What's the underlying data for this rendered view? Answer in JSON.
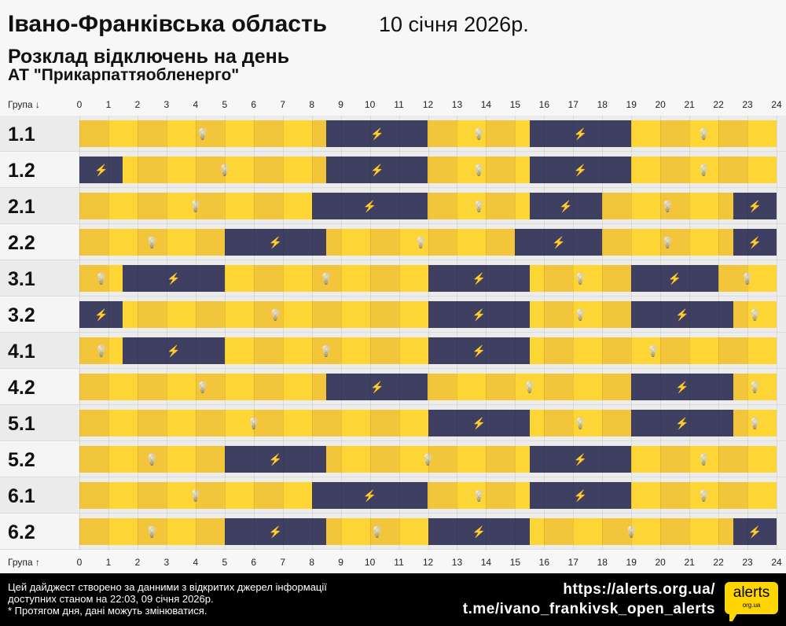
{
  "header": {
    "region": "Івано-Франківська область",
    "date": "10 січня 2026р.",
    "subtitle": "Розклад відключень на день",
    "company": "АТ \"Прикарпаттяобленерго\""
  },
  "chart_data": {
    "type": "timeline",
    "x_label_top": "Група ↓",
    "x_label_bottom": "Група ↑",
    "x_ticks": [
      "0",
      "1",
      "2",
      "3",
      "4",
      "5",
      "6",
      "7",
      "8",
      "9",
      "10",
      "11",
      "12",
      "13",
      "14",
      "15",
      "16",
      "17",
      "18",
      "19",
      "20",
      "21",
      "22",
      "23",
      "24"
    ],
    "xlim": [
      0,
      24
    ],
    "colors": {
      "power_on": "#fdd535",
      "power_on_alt": "#f3c53a",
      "power_off": "#3f3f62"
    },
    "icons": {
      "power_on": "lightbulb-icon",
      "power_off": "no-power-icon"
    },
    "groups": [
      {
        "name": "1.1",
        "off": [
          [
            8.5,
            12
          ],
          [
            15.5,
            19
          ]
        ]
      },
      {
        "name": "1.2",
        "off": [
          [
            0,
            1.5
          ],
          [
            8.5,
            12
          ],
          [
            15.5,
            19
          ]
        ]
      },
      {
        "name": "2.1",
        "off": [
          [
            8,
            12
          ],
          [
            15.5,
            18
          ],
          [
            22.5,
            24
          ]
        ]
      },
      {
        "name": "2.2",
        "off": [
          [
            5,
            8.5
          ],
          [
            15,
            18
          ],
          [
            22.5,
            24
          ]
        ]
      },
      {
        "name": "3.1",
        "off": [
          [
            1.5,
            5
          ],
          [
            12,
            15.5
          ],
          [
            19,
            22
          ]
        ]
      },
      {
        "name": "3.2",
        "off": [
          [
            0,
            1.5
          ],
          [
            12,
            15.5
          ],
          [
            19,
            22.5
          ]
        ]
      },
      {
        "name": "4.1",
        "off": [
          [
            1.5,
            5
          ],
          [
            12,
            15.5
          ]
        ]
      },
      {
        "name": "4.2",
        "off": [
          [
            8.5,
            12
          ],
          [
            19,
            22.5
          ]
        ]
      },
      {
        "name": "5.1",
        "off": [
          [
            12,
            15.5
          ],
          [
            19,
            22.5
          ]
        ]
      },
      {
        "name": "5.2",
        "off": [
          [
            5,
            8.5
          ],
          [
            15.5,
            19
          ]
        ]
      },
      {
        "name": "6.1",
        "off": [
          [
            8,
            12
          ],
          [
            15.5,
            19
          ]
        ]
      },
      {
        "name": "6.2",
        "off": [
          [
            5,
            8.5
          ],
          [
            12,
            15.5
          ],
          [
            22.5,
            24
          ]
        ]
      }
    ]
  },
  "footer": {
    "note_lines": [
      "Цей дайджест створено за данними з відкритих джерел інформації",
      "доступних станом на 22:03, 09 січня 2026р.",
      "* Протягом дня, дані можуть змінюватися."
    ],
    "url": "https://alerts.org.ua/",
    "telegram": "t.me/ivano_frankivsk_open_alerts",
    "logo_text": "alerts",
    "logo_sub": "org.ua"
  }
}
